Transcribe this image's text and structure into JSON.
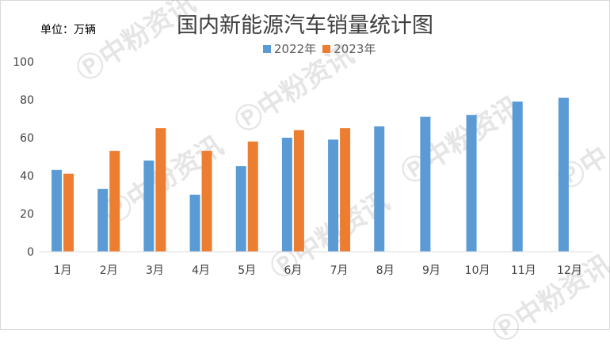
{
  "chart_data": {
    "type": "bar",
    "title": "国内新能源汽车销量统计图",
    "unit_label": "单位：万辆",
    "categories": [
      "1月",
      "2月",
      "3月",
      "4月",
      "5月",
      "6月",
      "7月",
      "8月",
      "9月",
      "10月",
      "11月",
      "12月"
    ],
    "series": [
      {
        "name": "2022年",
        "color": "#5b9bd5",
        "values": [
          43,
          33,
          48,
          30,
          45,
          60,
          59,
          66,
          71,
          72,
          79,
          81
        ]
      },
      {
        "name": "2023年",
        "color": "#ed7d31",
        "values": [
          41,
          53,
          65,
          53,
          58,
          64,
          65,
          null,
          null,
          null,
          null,
          null
        ]
      }
    ],
    "y_ticks": [
      0,
      20,
      40,
      60,
      80,
      100
    ],
    "ylim": [
      0,
      100
    ],
    "grid": false,
    "legend_position": "top"
  },
  "watermark": "中粉资讯"
}
